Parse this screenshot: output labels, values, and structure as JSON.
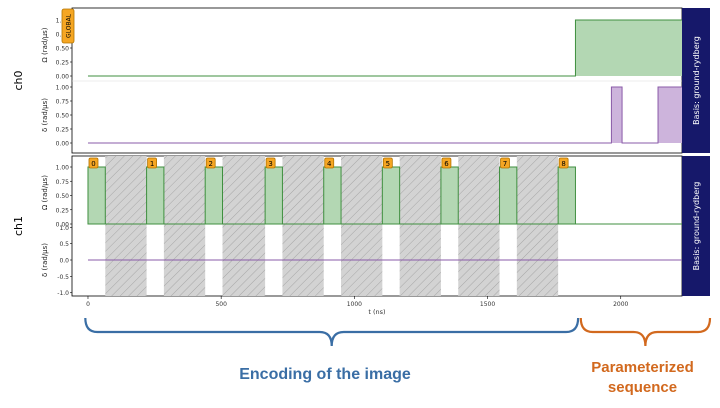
{
  "chart_data": {
    "type": "line",
    "title": "",
    "xlabel": "t (ns)",
    "xlim": [
      -60,
      2230
    ],
    "xticks": [
      0,
      500,
      1000,
      1500,
      2000
    ],
    "colors": {
      "omega_fill": "#b3d7b3",
      "omega_line": "#3f8f3f",
      "delta_fill": "#cdb4dc",
      "delta_line": "#8a5ba8",
      "target_fill": "#d3d3d3",
      "target_hatch": "#a6a6a6",
      "marker_fill": "#f5a623",
      "marker_edge": "#b37400",
      "basis_bg": "#16186a"
    },
    "channels": [
      {
        "name": "ch0",
        "basis_label": "Basis: ground-rydberg",
        "global_label": "GLOBAL",
        "omega": {
          "ylabel": "Ω (rad/µs)",
          "ylim": [
            0,
            1.1
          ],
          "yticks": [
            "0.00",
            "0.25",
            "0.50",
            "0.75",
            "1.00"
          ],
          "t": [
            0,
            1830,
            1830,
            2230
          ],
          "value": [
            0,
            0,
            1,
            1
          ]
        },
        "delta": {
          "ylabel": "δ (rad/µs)",
          "ylim": [
            0,
            1.1
          ],
          "yticks": [
            "0.00",
            "0.25",
            "0.50",
            "0.75",
            "1.00"
          ],
          "t": [
            0,
            1965,
            1965,
            2005,
            2005,
            2140,
            2140,
            2230
          ],
          "value": [
            0,
            0,
            1,
            1,
            0,
            0,
            1,
            1
          ]
        }
      },
      {
        "name": "ch1",
        "basis_label": "Basis: ground-rydberg",
        "omega": {
          "ylabel": "Ω (rad/µs)",
          "ylim": [
            0,
            1.1
          ],
          "yticks": [
            "0.00",
            "0.25",
            "0.50",
            "0.75",
            "1.00"
          ],
          "pulses": [
            {
              "marker": "0",
              "start": 0,
              "end": 65
            },
            {
              "marker": "1",
              "start": 220,
              "end": 285
            },
            {
              "marker": "2",
              "start": 440,
              "end": 505
            },
            {
              "marker": "3",
              "start": 665,
              "end": 730
            },
            {
              "marker": "4",
              "start": 885,
              "end": 950
            },
            {
              "marker": "5",
              "start": 1105,
              "end": 1170
            },
            {
              "marker": "6",
              "start": 1325,
              "end": 1390
            },
            {
              "marker": "7",
              "start": 1545,
              "end": 1610
            },
            {
              "marker": "8",
              "start": 1765,
              "end": 1830
            }
          ]
        },
        "delta": {
          "ylabel": "δ (rad/µs)",
          "ylim": [
            -1.1,
            1.1
          ],
          "yticks": [
            "-1.0",
            "-0.5",
            "0.0",
            "0.5",
            "1.0"
          ],
          "value": 0
        },
        "target_intervals": [
          [
            65,
            220
          ],
          [
            285,
            440
          ],
          [
            505,
            665
          ],
          [
            730,
            885
          ],
          [
            950,
            1105
          ],
          [
            1170,
            1325
          ],
          [
            1390,
            1545
          ],
          [
            1610,
            1765
          ]
        ]
      }
    ]
  },
  "annotations": {
    "encoding": {
      "label": "Encoding of the image",
      "from": -10,
      "to": 1840
    },
    "parameterized": {
      "label": "Parameterized sequence",
      "label_lines": [
        "Parameterized",
        "sequence"
      ],
      "from": 1850,
      "to": 2230
    }
  }
}
